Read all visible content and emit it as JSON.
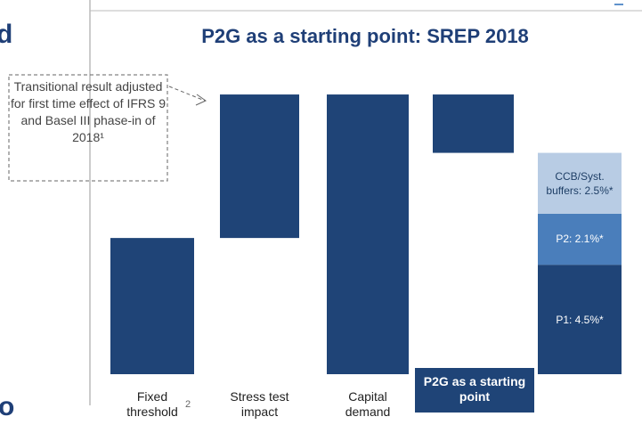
{
  "chart_data": {
    "type": "waterfall",
    "title": "P2G as a starting point: SREP 2018",
    "categories": [
      "Fixed threshold",
      "Stress test impact",
      "Capital demand",
      "P2G as a starting point"
    ],
    "values": [
      5.6,
      5.9,
      11.5,
      -2.4
    ],
    "is_total": [
      false,
      false,
      true,
      false
    ],
    "color": "#1f4477",
    "highlight_category": 3,
    "footnote_mark": "2",
    "annotation": "Transitional result adjusted for first time effect of IFRS 9 and Basel III phase-in of 2018¹",
    "stack": {
      "values": [
        4.5,
        2.1,
        2.5
      ],
      "value_labels": [
        "P1: 4.5%*",
        "P2: 2.1%*",
        "CCB/Syst. buffers: 2.5%*"
      ],
      "colors": [
        "#1f4477",
        "#4a7ebb",
        "#b8cce4"
      ],
      "label_colors": [
        "#ffffff",
        "#ffffff",
        "#1f3f66"
      ]
    }
  },
  "fragments": [
    "d",
    "o"
  ]
}
